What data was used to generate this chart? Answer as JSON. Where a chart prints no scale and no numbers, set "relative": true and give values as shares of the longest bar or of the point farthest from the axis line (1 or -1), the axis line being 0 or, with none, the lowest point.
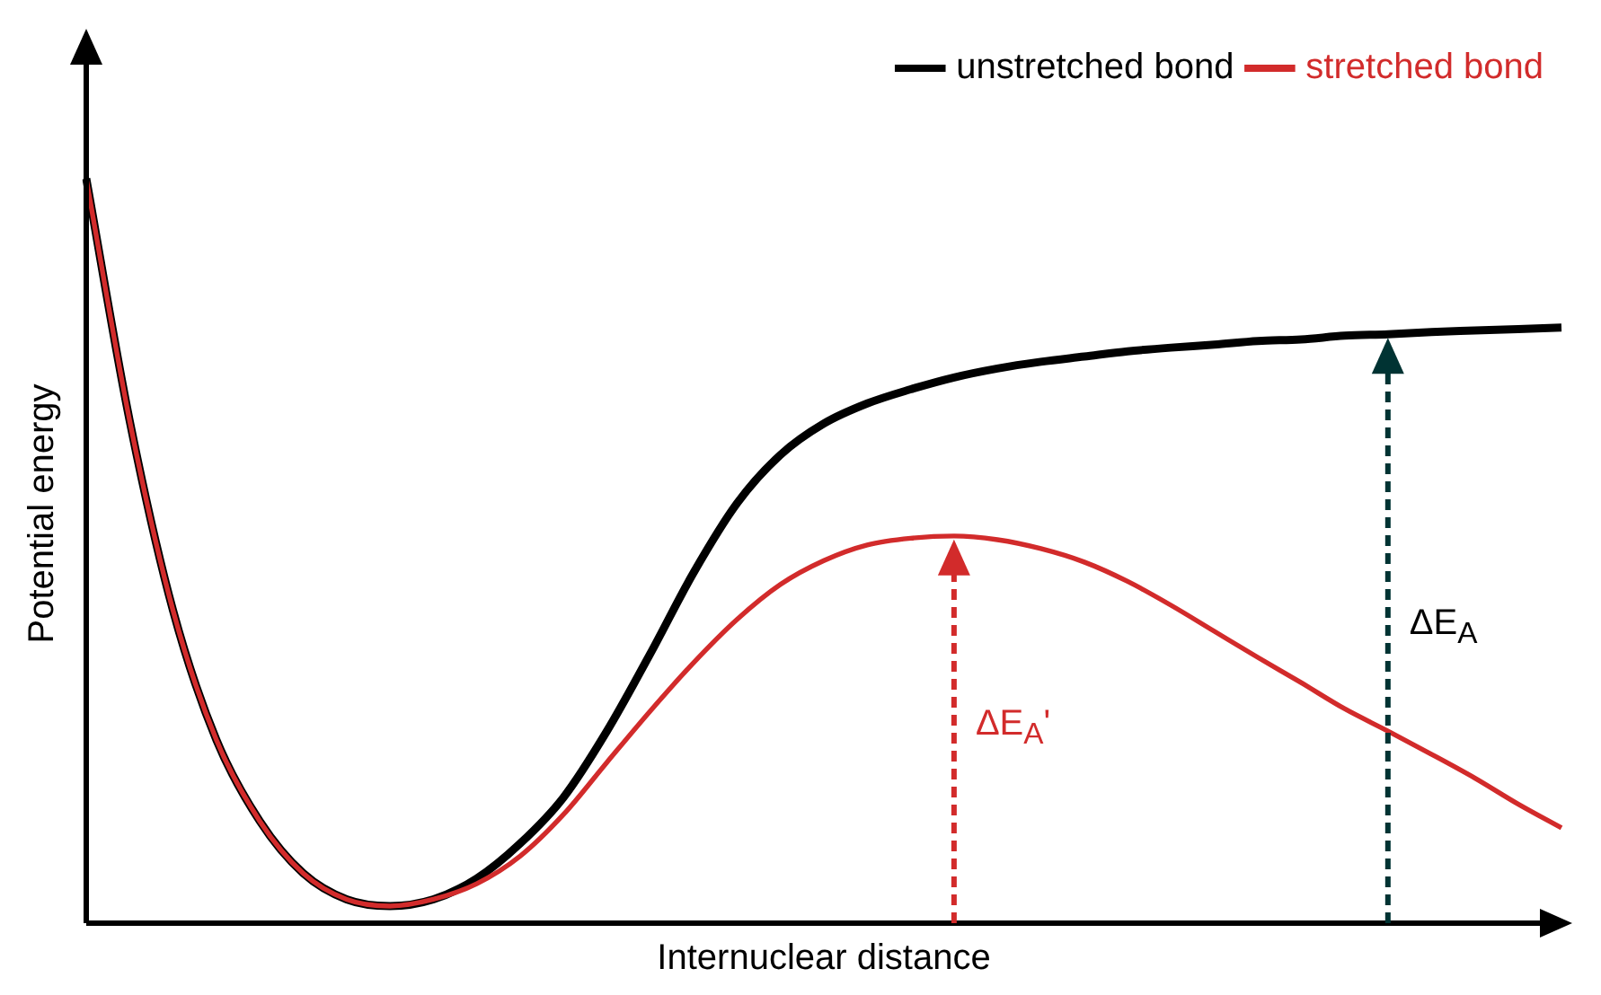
{
  "chart_data": {
    "type": "line",
    "relative": true,
    "xlabel": "Internuclear distance",
    "ylabel": "Potential energy",
    "legend": "top right",
    "marker": "none",
    "categories": [
      null,
      null,
      null,
      null,
      null,
      null,
      null,
      null,
      null,
      null,
      null,
      null,
      null,
      null,
      null,
      null,
      null,
      null,
      null,
      null,
      null,
      null,
      null,
      null,
      null,
      null,
      null,
      null,
      null,
      null,
      null,
      null,
      null,
      null,
      null
    ],
    "series": [
      {
        "name": "unstretched bond",
        "color": "#000000",
        "values": [
          1.0,
          0.675,
          0.42,
          0.246,
          0.137,
          0.067,
          0.032,
          0.023,
          0.032,
          0.06,
          0.107,
          0.169,
          0.258,
          0.362,
          0.471,
          0.564,
          0.629,
          0.671,
          0.698,
          0.717,
          0.733,
          0.745,
          0.754,
          0.761,
          0.768,
          0.773,
          0.777,
          0.782,
          0.784,
          0.789,
          0.791,
          0.794,
          0.796,
          0.798,
          0.8
        ]
      },
      {
        "name": "stretched bond",
        "color": "#d22b2b",
        "values": [
          1.0,
          0.675,
          0.42,
          0.246,
          0.137,
          0.067,
          0.032,
          0.023,
          0.032,
          0.053,
          0.09,
          0.146,
          0.216,
          0.285,
          0.35,
          0.408,
          0.455,
          0.487,
          0.508,
          0.517,
          0.52,
          0.515,
          0.503,
          0.485,
          0.459,
          0.427,
          0.392,
          0.357,
          0.323,
          0.288,
          0.258,
          0.227,
          0.195,
          0.16,
          0.128
        ]
      }
    ],
    "annotations": [
      "ΔE$_{A}$'",
      "ΔE$_{A}$"
    ]
  }
}
